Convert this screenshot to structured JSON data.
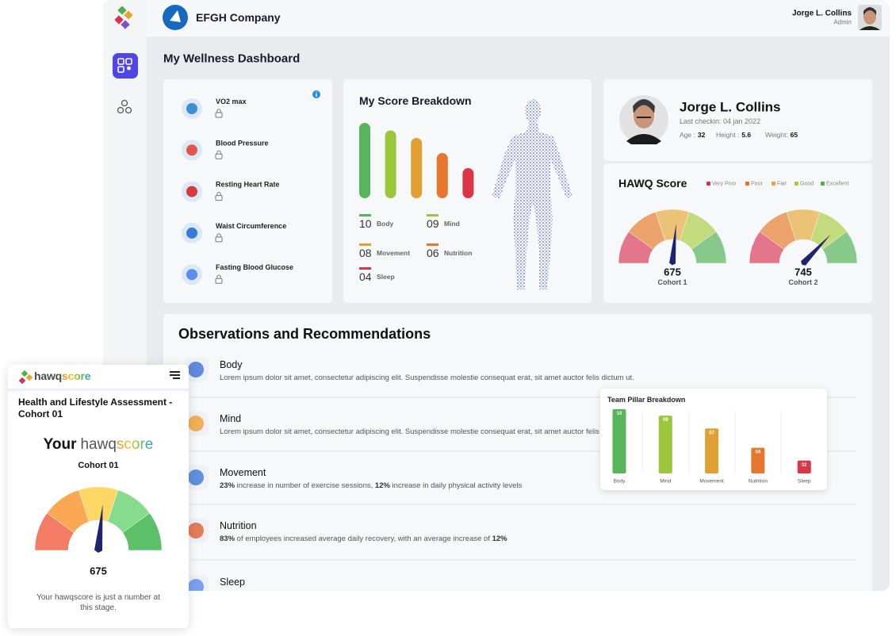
{
  "header": {
    "company": "EFGH Company",
    "user_name": "Jorge L. Collins",
    "user_role": "Admin"
  },
  "page_title": "My Wellness Dashboard",
  "metrics": [
    "VO2 max",
    "Blood Pressure",
    "Resting Heart Rate",
    "Waist Circumference",
    "Fasting Blood Glucose"
  ],
  "score_breakdown": {
    "title": "My Score Breakdown",
    "categories": [
      "Body",
      "Mind",
      "Movement",
      "Nutrition",
      "Sleep"
    ],
    "values": [
      10,
      9,
      8,
      6,
      4
    ],
    "value_labels": [
      "10",
      "09",
      "08",
      "06",
      "04"
    ],
    "colors": [
      "#58b55c",
      "#9cc63b",
      "#e0a033",
      "#e8772e",
      "#dc3545"
    ],
    "ylim": [
      0,
      10
    ]
  },
  "profile": {
    "name": "Jorge L. Collins",
    "last_checkin": "Last checkin: 04 jan 2022",
    "stats": [
      {
        "label": "Age :",
        "value": 32
      },
      {
        "label": "Height :",
        "value": 5.6
      },
      {
        "label": "Weight:",
        "value": 65
      }
    ]
  },
  "hawq_score": {
    "title": "HAWQ Score",
    "legend": [
      {
        "name": "Very Poor",
        "color": "#d9304f"
      },
      {
        "name": "Poor",
        "color": "#e6731f"
      },
      {
        "name": "Fair",
        "color": "#e6a530"
      },
      {
        "name": "Good",
        "color": "#a8c93a"
      },
      {
        "name": "Excellent",
        "color": "#4caf50"
      }
    ],
    "range": [
      500,
      830
    ],
    "gauges": [
      {
        "value": 675,
        "label": "Cohort 1"
      },
      {
        "value": 745,
        "label": "Cohort 2"
      }
    ]
  },
  "observations": {
    "title": "Observations and Recommendations",
    "items": [
      {
        "title": "Body",
        "text": [
          {
            "text": "Lorem ipsum dolor sit amet, consectetur adipiscing elit. Suspendisse molestie consequat erat, sit amet auctor felis dictum ut."
          }
        ]
      },
      {
        "title": "Mind",
        "text": [
          {
            "text": "Lorem ipsum dolor sit amet, consectetur adipiscing elit. Suspendisse molestie consequat erat, sit amet auctor felis dictum ut."
          }
        ]
      },
      {
        "title": "Movement",
        "text": [
          {
            "text": "23%",
            "bold": true
          },
          {
            "text": " increase in number of exercise sessions, "
          },
          {
            "text": "12%",
            "bold": true
          },
          {
            "text": " increase in daily physical activity levels"
          }
        ]
      },
      {
        "title": "Nutrition",
        "text": [
          {
            "text": "83%",
            "bold": true
          },
          {
            "text": " of employees increased average daily recovery, with an average increase of "
          },
          {
            "text": "12%",
            "bold": true
          }
        ]
      },
      {
        "title": "Sleep"
      }
    ]
  },
  "team_pillar": {
    "title": "Team Pillar Breakdown",
    "categories": [
      "Body",
      "Mind",
      "Movement",
      "Nutrition",
      "Sleep"
    ],
    "values": [
      10,
      9,
      7,
      4,
      2
    ],
    "value_labels": [
      "10",
      "09",
      "07",
      "04",
      "02"
    ],
    "colors": [
      "#58b55c",
      "#9cc63b",
      "#e0a033",
      "#e8772e",
      "#dc3545"
    ],
    "ylim": [
      0,
      10
    ]
  },
  "mobile": {
    "brand": [
      "hawq",
      "score"
    ],
    "title": "Health and Lifestyle Assessment - Cohort 01",
    "heading": [
      "Your",
      "hawq",
      "score"
    ],
    "cohort": "Cohort 01",
    "gauge": {
      "value": 675,
      "range": [
        500,
        830
      ],
      "colors": [
        "#f47c64",
        "#fba753",
        "#fdd663",
        "#86dc8c",
        "#5cc069"
      ]
    },
    "caption": "Your hawqscore is just a number at this stage."
  }
}
